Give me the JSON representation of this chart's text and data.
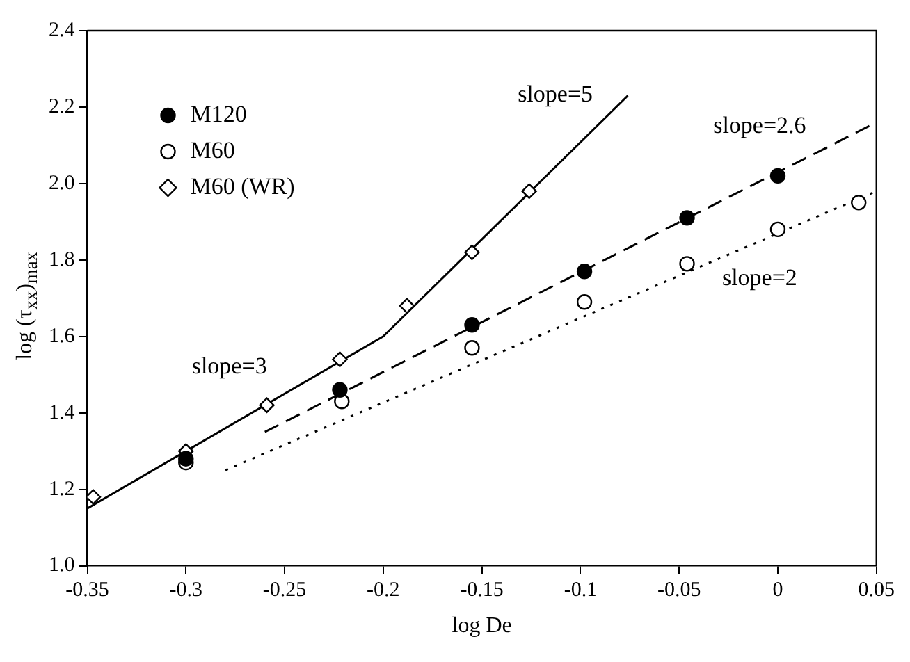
{
  "chart_data": {
    "type": "scatter",
    "xlabel": "log De",
    "ylabel": "log (τ$_{xx}$)$_{max}$",
    "xlim": [
      -0.35,
      0.05
    ],
    "xticks": [
      -0.35,
      -0.3,
      -0.25,
      -0.2,
      -0.15,
      -0.1,
      -0.05,
      0,
      0.05
    ],
    "ylim": [
      1.0,
      2.4
    ],
    "yticks": [
      {
        "value": 1.0,
        "label": "1.0"
      },
      {
        "value": 1.2,
        "label": "1.2"
      },
      {
        "value": 1.4,
        "label": "1.4"
      },
      {
        "value": 1.6,
        "label": "1.6"
      },
      {
        "value": 1.8,
        "label": "1.8"
      },
      {
        "value": 2.0,
        "label": "2.0"
      },
      {
        "value": 2.2,
        "label": "2.2"
      },
      {
        "value": 2.4,
        "label": "2.4"
      }
    ],
    "grid": false,
    "legend": "top left",
    "series": [
      {
        "name": "M120",
        "type": "scatter",
        "marker": "circle",
        "color": "#000000",
        "x": [
          -0.3,
          -0.222,
          -0.155,
          -0.098,
          -0.046,
          0.0
        ],
        "values": [
          1.28,
          1.46,
          1.63,
          1.77,
          1.91,
          2.02
        ]
      },
      {
        "name": "M60",
        "type": "scatter",
        "marker": "circle",
        "color": "#ffffff",
        "x": [
          -0.3,
          -0.221,
          -0.155,
          -0.098,
          -0.046,
          0.0,
          0.041
        ],
        "values": [
          1.27,
          1.43,
          1.57,
          1.69,
          1.79,
          1.88,
          1.95
        ]
      },
      {
        "name": "M60 (WR)",
        "type": "scatter",
        "marker": "diamond",
        "color": "#ffffff",
        "x": [
          -0.347,
          -0.3,
          -0.259,
          -0.222,
          -0.188,
          -0.155,
          -0.126
        ],
        "values": [
          1.18,
          1.3,
          1.42,
          1.54,
          1.68,
          1.82,
          1.98
        ]
      },
      {
        "type": "line",
        "marker": "none",
        "line_style": "solid",
        "color": "#000000",
        "x": [
          -0.35,
          -0.2,
          -0.076
        ],
        "values": [
          1.15,
          1.6,
          2.23
        ]
      },
      {
        "type": "line",
        "marker": "none",
        "line_style": "dashed",
        "color": "#000000",
        "x": [
          -0.26,
          0.05
        ],
        "values": [
          1.35,
          2.16
        ]
      },
      {
        "type": "line",
        "marker": "none",
        "line_style": "dotted",
        "color": "#000000",
        "x": [
          -0.28,
          0.05
        ],
        "values": [
          1.25,
          1.98
        ]
      }
    ],
    "annotations": [
      "slope=5",
      "slope=2.6",
      "slope=2",
      "slope=3"
    ]
  }
}
